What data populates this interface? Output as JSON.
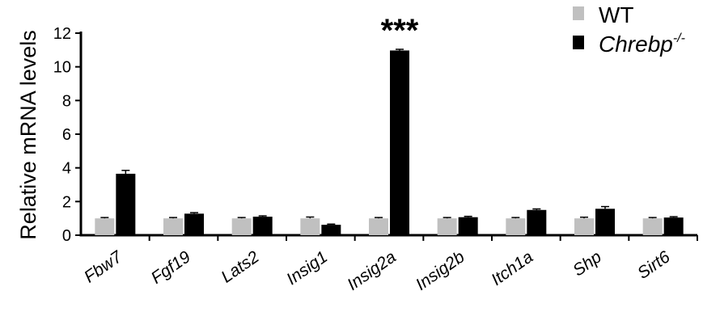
{
  "chart_data": {
    "type": "bar",
    "ylabel": "Relative mRNA levels",
    "ylim": [
      0,
      12
    ],
    "yticks": [
      0,
      2,
      4,
      6,
      8,
      10,
      12
    ],
    "grid": false,
    "legend_position": "top-right",
    "categories": [
      "Fbw7",
      "Fgf19",
      "Lats2",
      "Insig1",
      "Insig2a",
      "Insig2b",
      "Itch1a",
      "Shp",
      "Sirt6"
    ],
    "series": [
      {
        "name": "WT",
        "color": "#c0c0c0",
        "values": [
          1.0,
          1.0,
          1.0,
          1.0,
          1.0,
          1.0,
          1.0,
          1.0,
          1.0
        ],
        "errors": [
          0.05,
          0.05,
          0.05,
          0.08,
          0.05,
          0.05,
          0.05,
          0.07,
          0.05
        ]
      },
      {
        "name_main": "Chrebp",
        "name_sup": "-/-",
        "color": "#000000",
        "values": [
          3.65,
          1.28,
          1.1,
          0.62,
          10.97,
          1.07,
          1.5,
          1.57,
          1.05
        ],
        "errors": [
          0.2,
          0.06,
          0.05,
          0.04,
          0.07,
          0.05,
          0.06,
          0.13,
          0.05
        ]
      }
    ],
    "annotations": [
      {
        "category": "Insig2a",
        "text": "***"
      }
    ]
  }
}
